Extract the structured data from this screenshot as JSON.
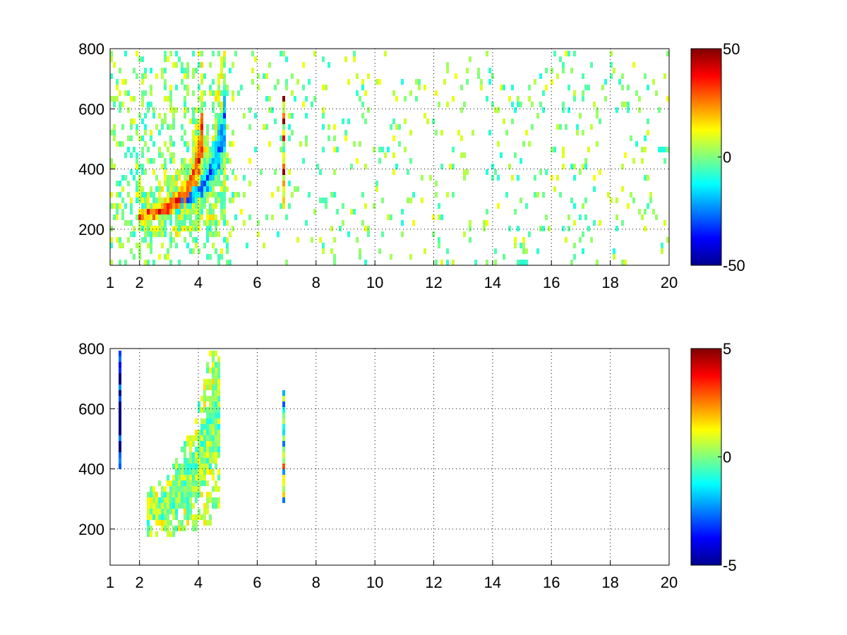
{
  "chart_data": [
    {
      "type": "heatmap",
      "title": "",
      "xlabel": "",
      "ylabel": "",
      "xlim": [
        1,
        20
      ],
      "ylim": [
        80,
        800
      ],
      "xticks": [
        1,
        2,
        4,
        6,
        8,
        10,
        12,
        14,
        16,
        18,
        20
      ],
      "yticks": [
        200,
        400,
        600,
        800
      ],
      "grid": true,
      "colormap": "jet",
      "clim": [
        -50,
        50
      ],
      "colorbar_ticks": [
        -50,
        0,
        50
      ],
      "features": [
        {
          "name": "positive band",
          "points": [
            [
              2.0,
              245
            ],
            [
              2.5,
              255
            ],
            [
              3.0,
              270
            ],
            [
              3.5,
              310
            ],
            [
              3.8,
              360
            ],
            [
              4.0,
              420
            ],
            [
              4.1,
              500
            ],
            [
              4.2,
              560
            ]
          ],
          "value": 35
        },
        {
          "name": "negative band",
          "points": [
            [
              3.2,
              270
            ],
            [
              3.6,
              290
            ],
            [
              4.0,
              320
            ],
            [
              4.3,
              370
            ],
            [
              4.6,
              430
            ],
            [
              4.8,
              500
            ],
            [
              4.9,
              580
            ]
          ],
          "value": -25
        },
        {
          "name": "vertical streak",
          "x": 6.9,
          "yrange": [
            270,
            640
          ],
          "value": 20
        }
      ]
    },
    {
      "type": "heatmap",
      "title": "",
      "xlabel": "",
      "ylabel": "",
      "xlim": [
        1,
        20
      ],
      "ylim": [
        80,
        800
      ],
      "xticks": [
        1,
        2,
        4,
        6,
        8,
        10,
        12,
        14,
        16,
        18,
        20
      ],
      "yticks": [
        200,
        400,
        600,
        800
      ],
      "grid": true,
      "colormap": "jet",
      "clim": [
        -5,
        5
      ],
      "colorbar_ticks": [
        -5,
        0,
        5
      ],
      "features": [
        {
          "name": "curved band",
          "points": [
            [
              2.2,
              250
            ],
            [
              2.8,
              270
            ],
            [
              3.3,
              310
            ],
            [
              3.8,
              370
            ],
            [
              4.1,
              430
            ],
            [
              4.4,
              520
            ],
            [
              4.7,
              600
            ]
          ],
          "value": 0
        },
        {
          "name": "vertical streak",
          "x": 6.9,
          "yrange": [
            280,
            660
          ],
          "value": 0
        },
        {
          "name": "left streak",
          "x": 1.35,
          "yrange": [
            400,
            790
          ],
          "value": -5
        }
      ]
    }
  ]
}
